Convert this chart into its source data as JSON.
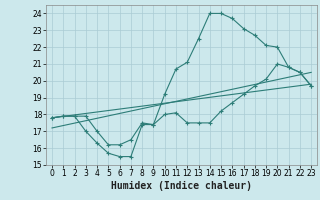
{
  "line1_x": [
    0,
    1,
    2,
    3,
    4,
    5,
    6,
    7,
    8,
    9,
    10,
    11,
    12,
    13,
    14,
    15,
    16,
    17,
    18,
    19,
    20,
    21,
    22,
    23
  ],
  "line1_y": [
    17.8,
    17.9,
    17.9,
    17.0,
    16.3,
    15.7,
    15.5,
    15.5,
    17.4,
    17.4,
    18.0,
    18.1,
    17.5,
    17.5,
    17.5,
    18.2,
    18.7,
    19.2,
    19.7,
    20.1,
    21.0,
    20.8,
    20.5,
    19.7
  ],
  "line2_x": [
    0,
    1,
    2,
    3,
    4,
    5,
    6,
    7,
    8,
    9,
    10,
    11,
    12,
    13,
    14,
    15,
    16,
    17,
    18,
    19,
    20,
    21,
    22,
    23
  ],
  "line2_y": [
    17.8,
    17.9,
    17.9,
    17.9,
    17.0,
    16.2,
    16.2,
    16.5,
    17.5,
    17.4,
    19.2,
    20.7,
    21.1,
    22.5,
    24.0,
    24.0,
    23.7,
    23.1,
    22.7,
    22.1,
    22.0,
    20.8,
    20.5,
    19.7
  ],
  "line3_x": [
    0,
    23
  ],
  "line3_y": [
    17.8,
    19.8
  ],
  "line4_x": [
    0,
    23
  ],
  "line4_y": [
    17.2,
    20.5
  ],
  "color": "#2d7d78",
  "bg_color": "#cce8ec",
  "grid_color": "#aaccd4",
  "xlabel": "Humidex (Indice chaleur)",
  "ylim": [
    15,
    24.5
  ],
  "xlim": [
    -0.5,
    23.5
  ],
  "yticks": [
    15,
    16,
    17,
    18,
    19,
    20,
    21,
    22,
    23,
    24
  ],
  "xticks": [
    0,
    1,
    2,
    3,
    4,
    5,
    6,
    7,
    8,
    9,
    10,
    11,
    12,
    13,
    14,
    15,
    16,
    17,
    18,
    19,
    20,
    21,
    22,
    23
  ],
  "tick_fontsize": 5.5,
  "xlabel_fontsize": 7
}
